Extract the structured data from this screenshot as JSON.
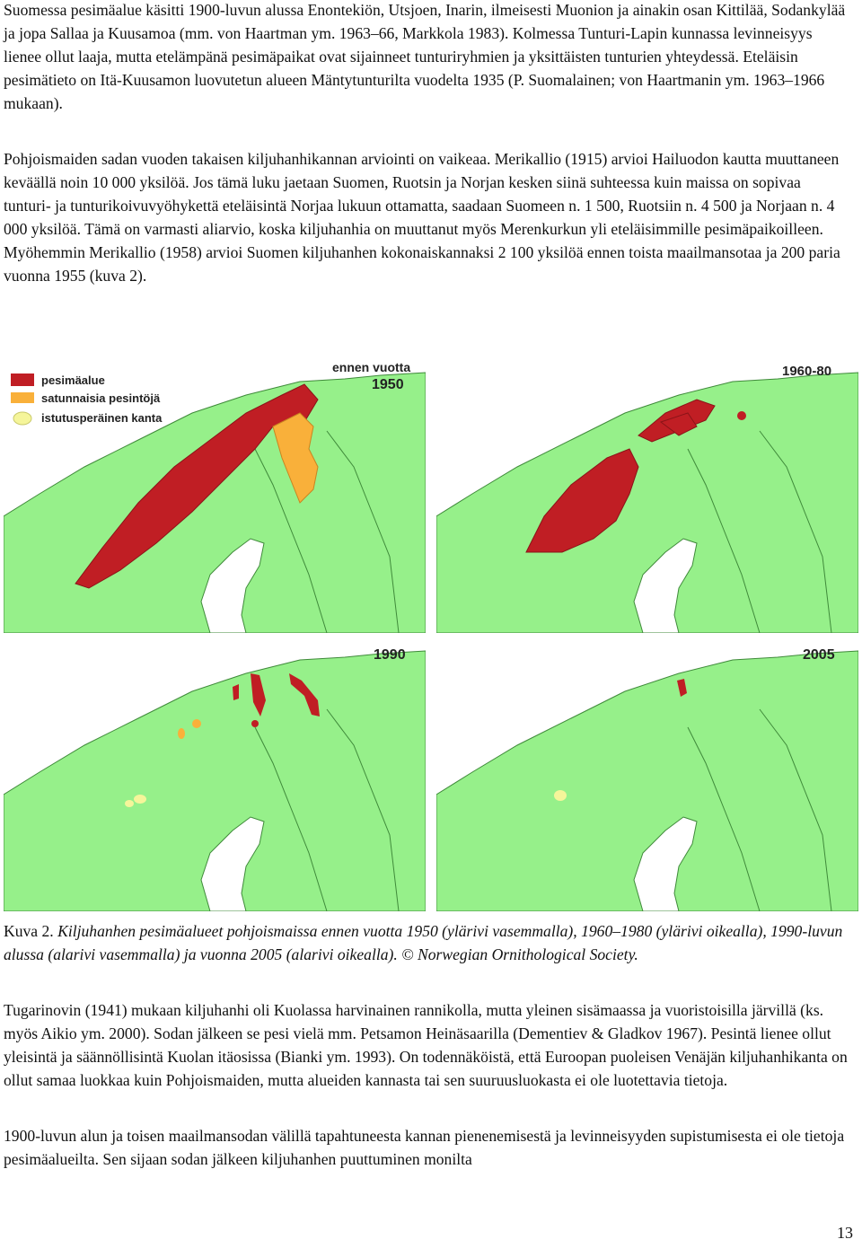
{
  "paragraphs": {
    "p1": "Suomessa pesimäalue käsitti 1900-luvun alussa Enontekiön, Utsjoen, Inarin, ilmeisesti Muonion ja ainakin osan Kittilää, Sodankylää ja jopa Sallaa ja Kuusamoa (mm. von Haartman ym. 1963–66, Markkola 1983). Kolmessa Tunturi-Lapin kunnassa levinneisyys lienee ollut laaja, mutta etelämpänä pesimäpaikat ovat sijainneet tunturiryhmien ja yksittäisten tunturien yhteydessä. Eteläisin pesimätieto on Itä-Kuusamon luovutetun alueen Mäntytunturilta vuodelta 1935 (P. Suomalainen; von Haartmanin ym. 1963–1966 mukaan).",
    "p2": "Pohjoismaiden sadan vuoden takaisen kiljuhanhikannan arviointi on vaikeaa. Merikallio (1915) arvioi Hailuodon kautta muuttaneen keväällä noin 10 000 yksilöä. Jos tämä luku jaetaan Suomen, Ruotsin ja Norjan kesken siinä suhteessa kuin maissa on sopivaa tunturi- ja tunturikoivuvyöhykettä eteläisintä Norjaa lukuun ottamatta, saadaan Suomeen n. 1 500, Ruotsiin n. 4 500 ja Norjaan n. 4 000 yksilöä. Tämä on varmasti aliarvio, koska kiljuhanhia on muuttanut myös Merenkurkun yli eteläisimmille pesimäpaikoilleen. Myöhemmin Merikallio (1958) arvioi Suomen kiljuhanhen kokonaiskannaksi 2 100 yksilöä ennen toista maailmansotaa ja 200 paria vuonna 1955 (kuva 2).",
    "p3": "Tugarinovin (1941) mukaan kiljuhanhi oli Kuolassa harvinainen rannikolla, mutta yleinen sisämaassa ja vuoristoisilla järvillä (ks. myös Aikio ym. 2000). Sodan jälkeen se pesi vielä mm. Petsamon Heinäsaarilla (Dementiev & Gladkov 1967). Pesintä lienee ollut yleisintä ja säännöllisintä Kuolan itäosissa (Bianki ym. 1993). On todennäköistä, että Euroopan puoleisen Venäjän kiljuhanhikanta on ollut samaa luokkaa kuin Pohjoismaiden, mutta alueiden kannasta tai sen suuruusluokasta ei ole luotettavia tietoja.",
    "p4": "1900-luvun alun ja toisen maailmansodan välillä tapahtuneesta kannan pienenemisestä ja levinneisyyden supistumisesta ei ole tietoja pesimäalueilta. Sen sijaan sodan jälkeen kiljuhanhen puuttuminen monilta"
  },
  "maps": {
    "map1_label_line1": "ennen vuotta",
    "map1_label_line2": "1950",
    "map2_label": "1960-80",
    "map3_label": "1990",
    "map4_label": "2005",
    "legend": {
      "breeding": "pesimäalue",
      "occasional": "satunnaisia pesintöjä",
      "reintroduced": "istutusperäinen kanta"
    }
  },
  "caption": {
    "prefix": "Kuva 2.",
    "text": "Kiljuhanhen pesimäalueet pohjoismaissa ennen vuotta 1950 (ylärivi vasemmalla), 1960–1980 (ylärivi oikealla), 1990-luvun alussa (alarivi vasemmalla) ja vuonna 2005 (alarivi oikealla).",
    "copyright_symbol": "©",
    "credit": "Norwegian Ornithological Society."
  },
  "page_number": "13",
  "colors": {
    "land": "#96f08a",
    "sea": "#ffffff",
    "border": "#3f8a3a",
    "breeding": "#c01e24",
    "occasional": "#f9b03a",
    "reintroduced": "#f5f59a"
  }
}
